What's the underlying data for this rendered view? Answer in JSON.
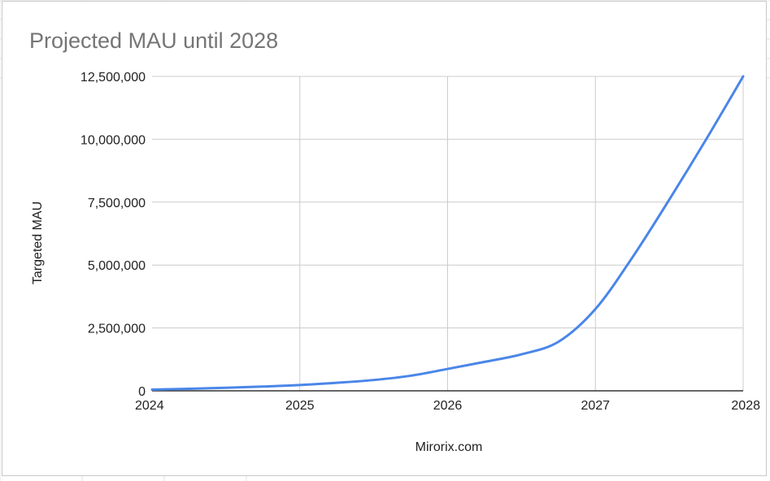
{
  "chart_data": {
    "type": "line",
    "title": "Projected MAU until 2028",
    "xlabel": "Mirorix.com",
    "ylabel": "Targeted MAU",
    "x_ticks": [
      "2024",
      "2025",
      "2026",
      "2027",
      "2028"
    ],
    "y_ticks": [
      "0",
      "2,500,000",
      "5,000,000",
      "7,500,000",
      "10,000,000",
      "12,500,000"
    ],
    "xlim": [
      2024,
      2028
    ],
    "ylim": [
      0,
      12500000
    ],
    "grid": true,
    "legend": "none",
    "colors": {
      "series": "#4a86e8",
      "grid": "#cccccc",
      "axis": "#333333",
      "title": "#757575"
    },
    "series": [
      {
        "x": [
          2024.0,
          2024.25,
          2024.5,
          2024.75,
          2025.0,
          2025.25,
          2025.5,
          2025.75,
          2026.0,
          2026.25,
          2026.5,
          2026.75,
          2027.0,
          2027.25,
          2027.5,
          2027.75,
          2028.0
        ],
        "values": [
          50000,
          80000,
          120000,
          170000,
          230000,
          320000,
          430000,
          600000,
          870000,
          1150000,
          1450000,
          1950000,
          3250000,
          5300000,
          7600000,
          10000000,
          12500000
        ]
      }
    ]
  }
}
